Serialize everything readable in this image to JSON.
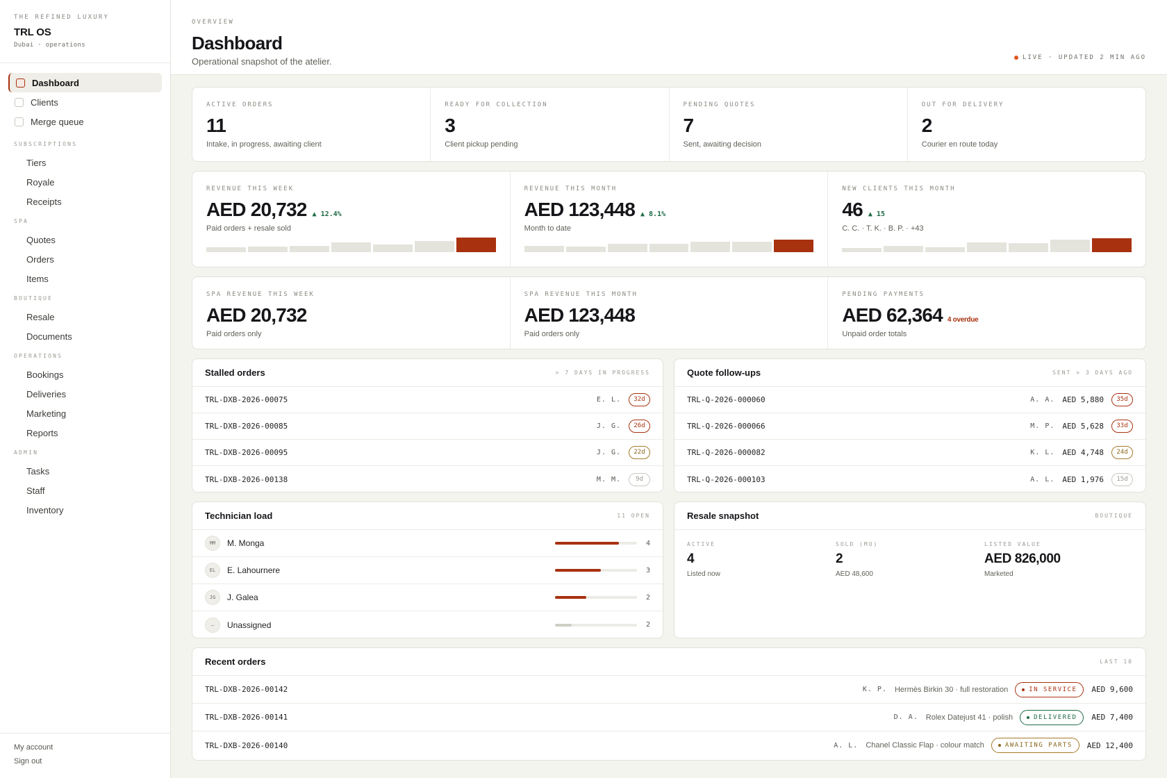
{
  "brand": {
    "eyebrow": "THE REFINED LUXURY",
    "name": "TRL OS",
    "sub": "Dubai · operations"
  },
  "nav_top": [
    {
      "label": "Dashboard",
      "active": true
    },
    {
      "label": "Clients",
      "active": false
    },
    {
      "label": "Merge queue",
      "active": false
    }
  ],
  "nav_groups": [
    {
      "label": "SUBSCRIPTIONS",
      "items": [
        "Tiers",
        "Royale",
        "Receipts"
      ]
    },
    {
      "label": "SPA",
      "items": [
        "Quotes",
        "Orders",
        "Items"
      ]
    },
    {
      "label": "BOUTIQUE",
      "items": [
        "Resale",
        "Documents"
      ]
    },
    {
      "label": "OPERATIONS",
      "items": [
        "Bookings",
        "Deliveries",
        "Marketing",
        "Reports"
      ]
    },
    {
      "label": "ADMIN",
      "items": [
        "Tasks",
        "Staff",
        "Inventory"
      ]
    }
  ],
  "footer": {
    "account": "My account",
    "signout": "Sign out"
  },
  "header": {
    "eyebrow": "OVERVIEW",
    "title": "Dashboard",
    "subtitle": "Operational snapshot of the atelier.",
    "live": "LIVE · UPDATED 2 MIN AGO"
  },
  "colors": {
    "accent": "#a8310f",
    "positive": "#1e6b45",
    "amber": "#8a6418",
    "live_dot": "#e0541e"
  },
  "stats": [
    {
      "label": "ACTIVE ORDERS",
      "value": "11",
      "note": "Intake, in progress, awaiting client"
    },
    {
      "label": "READY FOR COLLECTION",
      "value": "3",
      "note": "Client pickup pending"
    },
    {
      "label": "PENDING QUOTES",
      "value": "7",
      "note": "Sent, awaiting decision"
    },
    {
      "label": "OUT FOR DELIVERY",
      "value": "2",
      "note": "Courier en route today"
    }
  ],
  "revenue": [
    {
      "label": "REVENUE THIS WEEK",
      "value": "AED 20,732",
      "delta": "▲ 12.4%",
      "note": "Paid orders + resale sold",
      "spark": [
        0.35,
        0.4,
        0.45,
        0.65,
        0.5,
        0.75,
        1.0
      ]
    },
    {
      "label": "REVENUE THIS MONTH",
      "value": "AED 123,448",
      "delta": "▲ 8.1%",
      "note": "Month to date",
      "spark": [
        0.45,
        0.4,
        0.55,
        0.55,
        0.7,
        0.7,
        0.85
      ]
    },
    {
      "label": "NEW CLIENTS THIS MONTH",
      "value": "46",
      "delta": "▲ 15",
      "note": "C. C. · T. K. · B. P. · +43",
      "spark": [
        0.3,
        0.45,
        0.35,
        0.65,
        0.6,
        0.85,
        0.95
      ]
    }
  ],
  "spa": [
    {
      "label": "SPA REVENUE THIS WEEK",
      "value": "AED 20,732",
      "note": "Paid orders only",
      "extra": ""
    },
    {
      "label": "SPA REVENUE THIS MONTH",
      "value": "AED 123,448",
      "note": "Paid orders only",
      "extra": ""
    },
    {
      "label": "PENDING PAYMENTS",
      "value": "AED 62,364",
      "note": "Unpaid order totals",
      "extra": "4 overdue"
    }
  ],
  "stalled": {
    "title": "Stalled orders",
    "meta": "> 7 DAYS IN PROGRESS",
    "rows": [
      {
        "id": "TRL-DXB-2026-00075",
        "initials": "E. L.",
        "days": "32d",
        "tone": "red"
      },
      {
        "id": "TRL-DXB-2026-00085",
        "initials": "J. G.",
        "days": "26d",
        "tone": "red"
      },
      {
        "id": "TRL-DXB-2026-00095",
        "initials": "J. G.",
        "days": "22d",
        "tone": "amber"
      },
      {
        "id": "TRL-DXB-2026-00138",
        "initials": "M. M.",
        "days": "9d",
        "tone": "grey"
      }
    ]
  },
  "quotes": {
    "title": "Quote follow-ups",
    "meta": "SENT > 3 DAYS AGO",
    "rows": [
      {
        "id": "TRL-Q-2026-000060",
        "initials": "A. A.",
        "amount": "AED 5,880",
        "days": "35d",
        "tone": "red"
      },
      {
        "id": "TRL-Q-2026-000066",
        "initials": "M. P.",
        "amount": "AED 5,628",
        "days": "33d",
        "tone": "red"
      },
      {
        "id": "TRL-Q-2026-000082",
        "initials": "K. L.",
        "amount": "AED 4,748",
        "days": "24d",
        "tone": "amber"
      },
      {
        "id": "TRL-Q-2026-000103",
        "initials": "A. L.",
        "amount": "AED 1,976",
        "days": "15d",
        "tone": "grey"
      }
    ]
  },
  "technicians": {
    "title": "Technician load",
    "meta": "11 OPEN",
    "rows": [
      {
        "initials": "MM",
        "name": "M. Monga",
        "count": "4",
        "load": 0.78,
        "muted": false
      },
      {
        "initials": "EL",
        "name": "E. Lahournere",
        "count": "3",
        "load": 0.56,
        "muted": false
      },
      {
        "initials": "JG",
        "name": "J. Galea",
        "count": "2",
        "load": 0.38,
        "muted": false
      },
      {
        "initials": "–",
        "name": "Unassigned",
        "count": "2",
        "load": 0.2,
        "muted": true
      }
    ]
  },
  "resale": {
    "title": "Resale snapshot",
    "meta": "BOUTIQUE",
    "cols": [
      {
        "label": "ACTIVE",
        "value": "4",
        "note": "Listed now"
      },
      {
        "label": "SOLD (MO)",
        "value": "2",
        "note": "AED 48,600"
      },
      {
        "label": "LISTED VALUE",
        "value": "AED 826,000",
        "note": "Marketed"
      }
    ]
  },
  "recent": {
    "title": "Recent orders",
    "meta": "LAST 10",
    "rows": [
      {
        "id": "TRL-DXB-2026-00142",
        "initials": "K. P.",
        "item": "Hermès Birkin 30 · full restoration",
        "status": "IN SERVICE",
        "tone": "red",
        "amount": "AED 9,600"
      },
      {
        "id": "TRL-DXB-2026-00141",
        "initials": "D. A.",
        "item": "Rolex Datejust 41 · polish",
        "status": "DELIVERED",
        "tone": "green",
        "amount": "AED 7,400"
      },
      {
        "id": "TRL-DXB-2026-00140",
        "initials": "A. L.",
        "item": "Chanel Classic Flap · colour match",
        "status": "AWAITING PARTS",
        "tone": "amber",
        "amount": "AED 12,400"
      }
    ]
  }
}
